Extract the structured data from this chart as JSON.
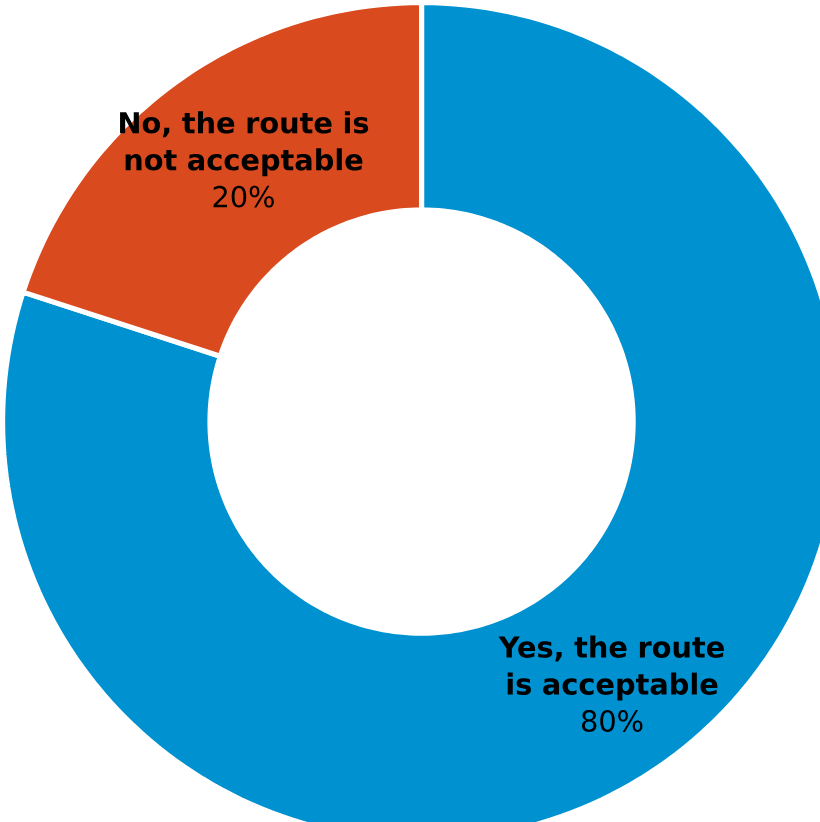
{
  "chart_data": {
    "type": "donut",
    "categories": [
      "Yes, the route is acceptable",
      "No, the route is not acceptable"
    ],
    "values": [
      80,
      20
    ],
    "colors": [
      "#0091d0",
      "#d94a1e"
    ],
    "value_labels": [
      "80%",
      "20%"
    ]
  }
}
